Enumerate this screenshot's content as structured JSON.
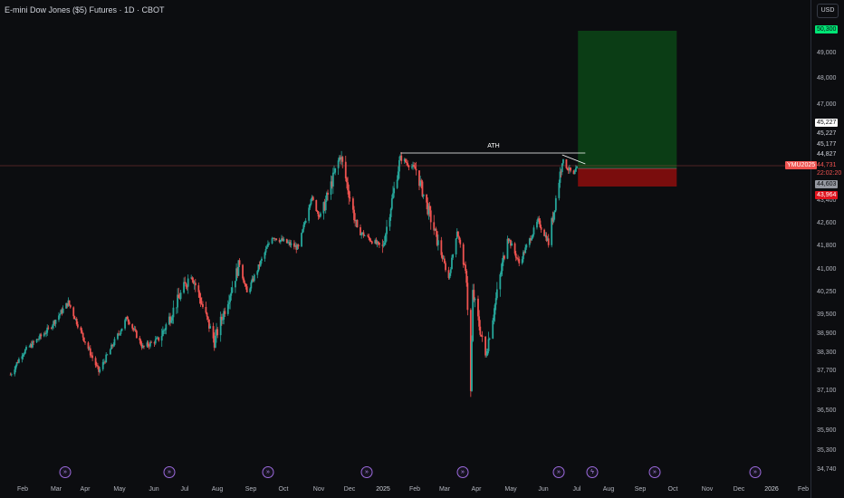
{
  "header": {
    "title": "E-mini Dow Jones ($5) Futures · 1D · CBOT",
    "currency": "USD"
  },
  "price_axis": {
    "ticks": [
      "49,000",
      "48,000",
      "47,000",
      "43,400",
      "42,600",
      "41,800",
      "41,000",
      "40,250",
      "39,500",
      "38,900",
      "38,300",
      "37,700",
      "37,100",
      "36,500",
      "35,900",
      "35,300",
      "34,740"
    ],
    "tags": {
      "target": "50,300",
      "level1": "45,227",
      "level2": "45,227",
      "level3": "45,177",
      "level4": "44,827",
      "symbol": "YMU2025",
      "last": "44,731",
      "countdown": "22:02:20",
      "entry": "44,603",
      "stop": "43,964"
    }
  },
  "time_axis": {
    "months": [
      "Feb",
      "Mar",
      "Apr",
      "May",
      "Jun",
      "Jul",
      "Aug",
      "Sep",
      "Oct",
      "Nov",
      "Dec",
      "2025",
      "Feb",
      "Mar",
      "Apr",
      "May",
      "Jun",
      "Jul",
      "Aug",
      "Sep",
      "Oct",
      "Nov",
      "Dec",
      "2026",
      "Feb"
    ]
  },
  "annotations": {
    "ath_label": "ATH"
  },
  "colors": {
    "up": "#26a69a",
    "down": "#ef5350",
    "profit_zone": "#0b3d15",
    "loss_zone": "#7a0d0d",
    "event_icon": "#9c6ade"
  },
  "events": {
    "icon": "dividend-arrow-icon",
    "glyph": "»",
    "special_glyph": "ϟ"
  },
  "chart_data": {
    "type": "candlestick",
    "series": [
      {
        "name": "",
        "anchors": [
          [
            "2024-01-25",
            37800
          ],
          [
            "2024-02-05",
            38500
          ],
          [
            "2024-03-01",
            39300
          ],
          [
            "2024-03-20",
            40200
          ],
          [
            "2024-04-05",
            38900
          ],
          [
            "2024-04-18",
            37900
          ],
          [
            "2024-05-15",
            39700
          ],
          [
            "2024-05-30",
            38700
          ],
          [
            "2024-06-15",
            39000
          ],
          [
            "2024-07-15",
            41200
          ],
          [
            "2024-08-06",
            38900
          ],
          [
            "2024-08-30",
            41500
          ],
          [
            "2024-09-06",
            40500
          ],
          [
            "2024-09-30",
            42400
          ],
          [
            "2024-10-25",
            42000
          ],
          [
            "2024-11-06",
            43700
          ],
          [
            "2024-11-15",
            43000
          ],
          [
            "2024-12-04",
            45100
          ],
          [
            "2024-12-20",
            42600
          ],
          [
            "2025-01-13",
            42000
          ],
          [
            "2025-01-30",
            45000
          ],
          [
            "2025-02-14",
            44600
          ],
          [
            "2025-03-10",
            41800
          ],
          [
            "2025-03-17",
            41000
          ],
          [
            "2025-03-25",
            42600
          ],
          [
            "2025-04-03",
            41000
          ],
          [
            "2025-04-07",
            37200
          ],
          [
            "2025-04-09",
            40500
          ],
          [
            "2025-04-21",
            38400
          ],
          [
            "2025-05-12",
            42400
          ],
          [
            "2025-05-23",
            41500
          ],
          [
            "2025-06-10",
            42900
          ],
          [
            "2025-06-20",
            42200
          ],
          [
            "2025-07-03",
            44900
          ],
          [
            "2025-07-14",
            44400
          ],
          [
            "2025-07-18",
            44731
          ]
        ]
      }
    ],
    "annotations": {
      "ath_line": {
        "from": "2025-01-30",
        "to": "2025-07-25",
        "price": 45227
      },
      "long_position": {
        "from": "2025-07-18",
        "to": "2025-10-20",
        "entry": 44603,
        "target": 50300,
        "stop": 43964
      },
      "current_price": 44731
    },
    "ylim": [
      34600,
      50600
    ],
    "xlim": [
      "2024-01-15",
      "2026-02-20"
    ]
  }
}
